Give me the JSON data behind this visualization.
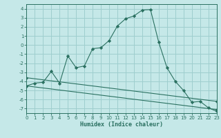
{
  "xlabel": "Humidex (Indice chaleur)",
  "xlim": [
    0,
    23
  ],
  "ylim": [
    -7.5,
    4.5
  ],
  "yticks": [
    4,
    3,
    2,
    1,
    0,
    -1,
    -2,
    -3,
    -4,
    -5,
    -6,
    -7
  ],
  "xticks": [
    0,
    1,
    2,
    3,
    4,
    5,
    6,
    7,
    8,
    9,
    10,
    11,
    12,
    13,
    14,
    15,
    16,
    17,
    18,
    19,
    20,
    21,
    22,
    23
  ],
  "background_color": "#c5e8e8",
  "grid_color": "#9ecece",
  "line_color": "#2a7060",
  "line1_x": [
    0,
    1,
    2,
    3,
    4,
    5,
    6,
    7,
    8,
    9,
    10,
    11,
    12,
    13,
    14,
    15,
    16,
    17,
    18,
    19,
    20,
    21,
    22,
    23
  ],
  "line1_y": [
    -4.5,
    -4.2,
    -4.1,
    -2.9,
    -4.2,
    -1.2,
    -2.5,
    -2.3,
    -0.4,
    -0.3,
    0.5,
    2.1,
    2.9,
    3.2,
    3.85,
    3.9,
    0.3,
    -2.5,
    -4.0,
    -5.0,
    -6.3,
    -6.2,
    -6.9,
    -7.3
  ],
  "line2_x": [
    0,
    23
  ],
  "line2_y": [
    -4.5,
    -7.1
  ],
  "line3_x": [
    0,
    23
  ],
  "line3_y": [
    -3.6,
    -6.2
  ]
}
